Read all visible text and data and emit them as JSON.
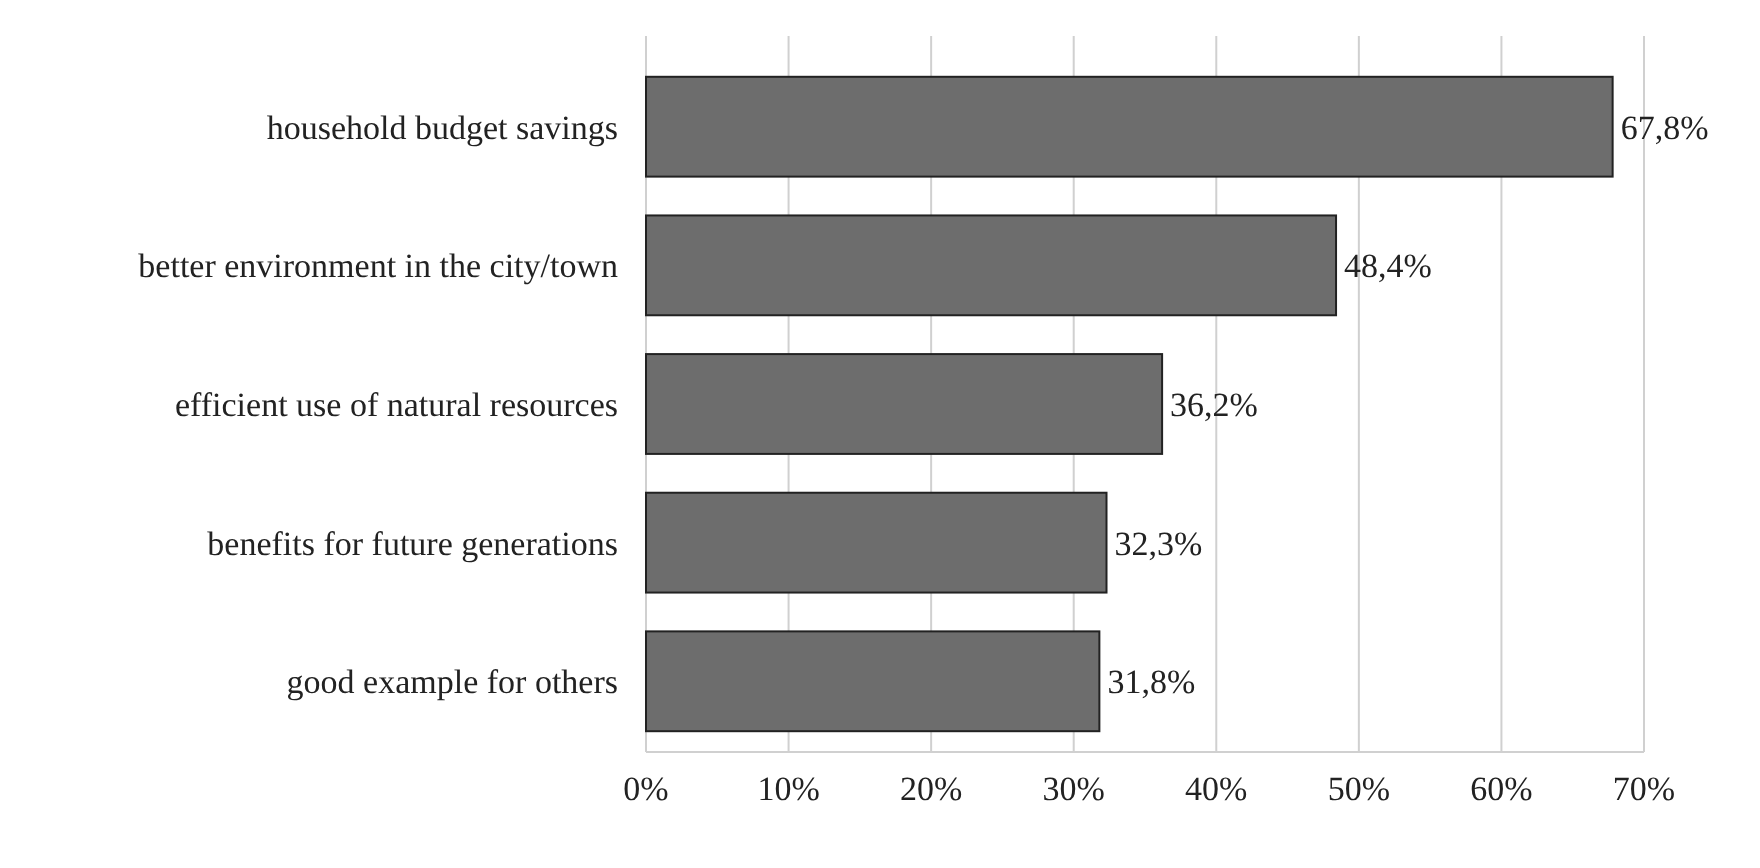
{
  "chart_data": {
    "type": "bar",
    "orientation": "horizontal",
    "categories": [
      "household budget savings",
      "better environment in the city/town",
      "efficient use of natural resources",
      "benefits for future generations",
      "good example for others"
    ],
    "values": [
      67.8,
      48.4,
      36.2,
      32.3,
      31.8
    ],
    "value_labels": [
      "67,8%",
      "48,4%",
      "36,2%",
      "32,3%",
      "31,8%"
    ],
    "color": "#6d6d6d",
    "xlim": [
      0,
      70
    ],
    "xticks": [
      {
        "value": 0,
        "label": "0%"
      },
      {
        "value": 10,
        "label": "10%"
      },
      {
        "value": 20,
        "label": "20%"
      },
      {
        "value": 30,
        "label": "30%"
      },
      {
        "value": 40,
        "label": "40%"
      },
      {
        "value": 50,
        "label": "50%"
      },
      {
        "value": 60,
        "label": "60%"
      },
      {
        "value": 70,
        "label": "70%"
      }
    ],
    "grid": "x"
  }
}
